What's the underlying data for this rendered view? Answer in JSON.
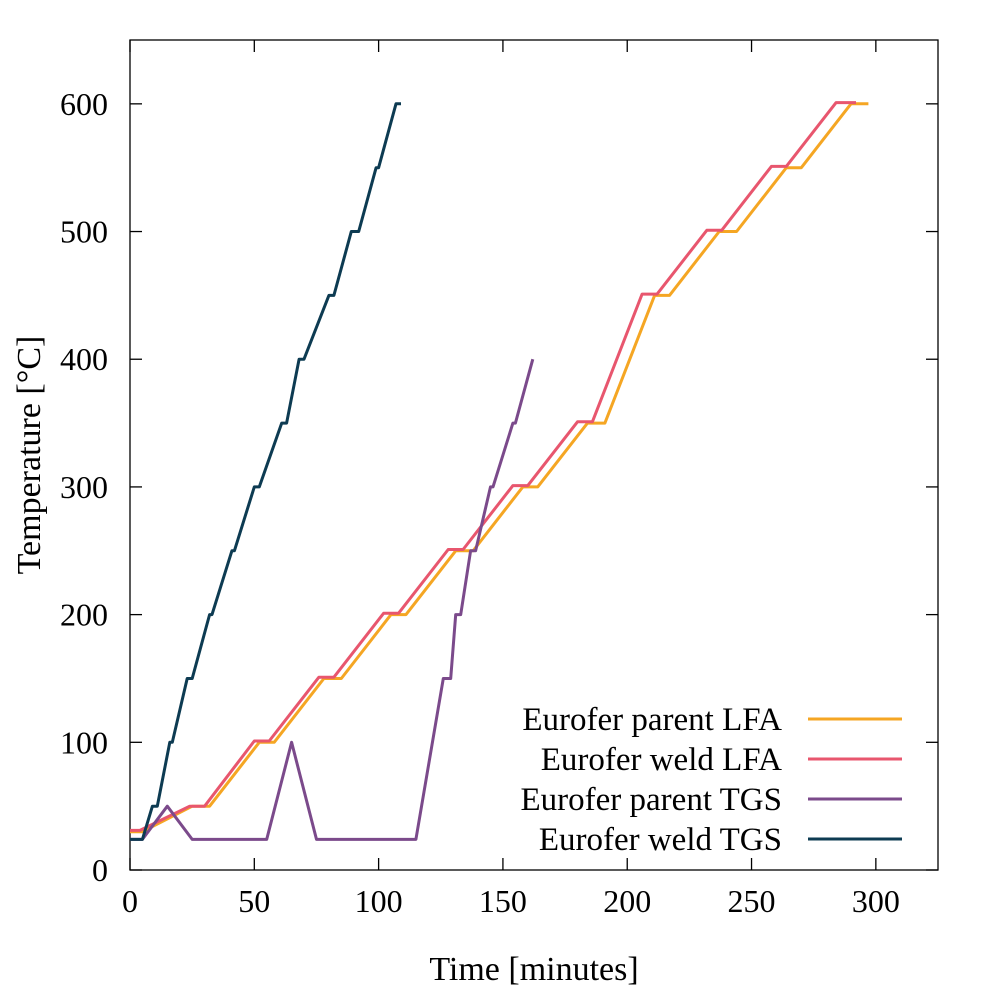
{
  "chart_data": {
    "type": "line",
    "title": "",
    "xlabel": "Time [minutes]",
    "ylabel": "Temperature [°C]",
    "xlim": [
      0,
      325
    ],
    "ylim": [
      0,
      650
    ],
    "xticks": [
      "0",
      "50",
      "100",
      "150",
      "200",
      "250",
      "300"
    ],
    "yticks": [
      "0",
      "100",
      "200",
      "300",
      "400",
      "500",
      "600"
    ],
    "grid": false,
    "legend_position": "bottom-right",
    "series": [
      {
        "name": "Eurofer parent LFA",
        "color": "#f5a623",
        "points": [
          [
            0,
            30
          ],
          [
            5,
            30
          ],
          [
            25,
            50
          ],
          [
            32,
            50
          ],
          [
            52,
            100
          ],
          [
            58,
            100
          ],
          [
            78,
            150
          ],
          [
            85,
            150
          ],
          [
            105,
            200
          ],
          [
            111,
            200
          ],
          [
            131,
            250
          ],
          [
            138,
            250
          ],
          [
            158,
            300
          ],
          [
            164,
            300
          ],
          [
            184,
            350
          ],
          [
            191,
            350
          ],
          [
            211,
            450
          ],
          [
            217,
            450
          ],
          [
            237,
            500
          ],
          [
            244,
            500
          ],
          [
            264,
            550
          ],
          [
            270,
            550
          ],
          [
            290,
            600
          ],
          [
            297,
            600
          ]
        ]
      },
      {
        "name": "Eurofer weld LFA",
        "color": "#e8566e",
        "points": [
          [
            0,
            31
          ],
          [
            4,
            31
          ],
          [
            24,
            50
          ],
          [
            30,
            50
          ],
          [
            50,
            101
          ],
          [
            56,
            101
          ],
          [
            76,
            151
          ],
          [
            82,
            151
          ],
          [
            102,
            201
          ],
          [
            108,
            201
          ],
          [
            128,
            251
          ],
          [
            134,
            251
          ],
          [
            154,
            301
          ],
          [
            160,
            301
          ],
          [
            180,
            351
          ],
          [
            186,
            351
          ],
          [
            206,
            451
          ],
          [
            212,
            451
          ],
          [
            232,
            501
          ],
          [
            238,
            501
          ],
          [
            258,
            551
          ],
          [
            264,
            551
          ],
          [
            284,
            601
          ],
          [
            292,
            601
          ]
        ]
      },
      {
        "name": "Eurofer parent TGS",
        "color": "#7b4a8b",
        "points": [
          [
            0,
            24
          ],
          [
            5,
            24
          ],
          [
            15,
            50
          ],
          [
            25,
            24
          ],
          [
            55,
            24
          ],
          [
            65,
            100
          ],
          [
            75,
            24
          ],
          [
            115,
            24
          ],
          [
            126,
            150
          ],
          [
            129,
            150
          ],
          [
            131,
            200
          ],
          [
            133,
            200
          ],
          [
            137,
            250
          ],
          [
            139,
            250
          ],
          [
            145,
            300
          ],
          [
            146,
            300
          ],
          [
            154,
            350
          ],
          [
            155,
            350
          ],
          [
            162,
            400
          ]
        ]
      },
      {
        "name": "Eurofer weld TGS",
        "color": "#0d3b52",
        "points": [
          [
            0,
            24
          ],
          [
            5,
            24
          ],
          [
            9,
            50
          ],
          [
            11,
            50
          ],
          [
            16,
            100
          ],
          [
            17,
            100
          ],
          [
            23,
            150
          ],
          [
            25,
            150
          ],
          [
            32,
            200
          ],
          [
            33,
            200
          ],
          [
            41,
            250
          ],
          [
            42,
            250
          ],
          [
            50,
            300
          ],
          [
            52,
            300
          ],
          [
            61,
            350
          ],
          [
            63,
            350
          ],
          [
            68,
            400
          ],
          [
            70,
            400
          ],
          [
            80,
            450
          ],
          [
            82,
            450
          ],
          [
            89,
            500
          ],
          [
            92,
            500
          ],
          [
            99,
            550
          ],
          [
            100,
            550
          ],
          [
            107,
            600
          ],
          [
            109,
            600
          ]
        ]
      }
    ]
  }
}
